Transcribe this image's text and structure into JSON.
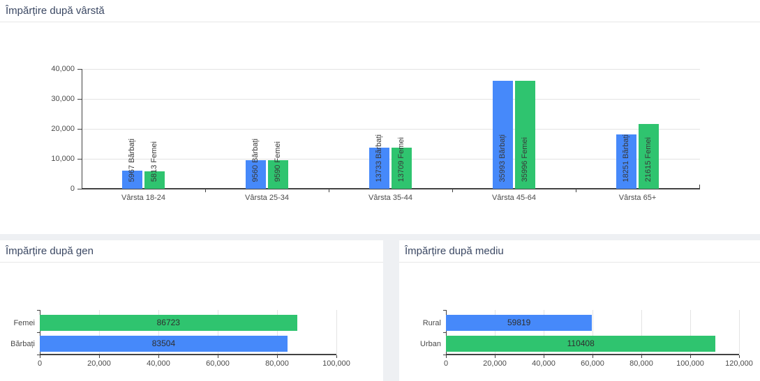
{
  "panels": {
    "age": {
      "title": "Împărțire după vârstă"
    },
    "gender": {
      "title": "Împărțire după gen"
    },
    "environment": {
      "title": "Împărțire după mediu"
    }
  },
  "theme": {
    "page_bg": "#eef0f3",
    "card_bg": "#ffffff",
    "title_text": "#3b4863",
    "divider": "#e7e7e7",
    "grid": "#e3e3e3",
    "axis": "#424242",
    "tick_text": "#4a4a4a",
    "annotation_text": "#383838",
    "value_text": "#2e2e2e",
    "male_blue": "#4689fa",
    "female_green": "#2fc46f"
  },
  "chart_data": [
    {
      "type": "bar",
      "orientation": "vertical",
      "title": "Împărțire după vârstă",
      "categories": [
        "Vârsta 18-24",
        "Vârsta 25-34",
        "Vârsta 35-44",
        "Vârsta 45-64",
        "Vârsta 65+"
      ],
      "series": [
        {
          "name": "Bărbați",
          "color": "#4689fa",
          "values": [
            5967,
            9560,
            13733,
            35993,
            18251
          ]
        },
        {
          "name": "Femei",
          "color": "#2fc46f",
          "values": [
            5813,
            9590,
            13709,
            35996,
            21615
          ]
        }
      ],
      "ylim": [
        0,
        40000
      ],
      "yticks": [
        0,
        10000,
        20000,
        30000,
        40000
      ],
      "grid": true,
      "legend": "none",
      "annotations": [
        "5967 Bărbați",
        "5813 Femei",
        "9560 Bărbați",
        "9590 Femei",
        "13733 Bărbați",
        "13709 Femei",
        "35993 Bărbați",
        "35996 Femei",
        "18251 Bărbați",
        "21615 Femei"
      ]
    },
    {
      "type": "bar",
      "orientation": "horizontal",
      "title": "Împărțire după gen",
      "categories": [
        "Femei",
        "Bărbați"
      ],
      "values": [
        86723,
        83504
      ],
      "value_labels": [
        "86723",
        "83504"
      ],
      "colors": [
        "#2fc46f",
        "#4689fa"
      ],
      "xlim": [
        0,
        100000
      ],
      "xticks": [
        0,
        20000,
        40000,
        60000,
        80000,
        100000
      ],
      "grid": true,
      "legend": "none"
    },
    {
      "type": "bar",
      "orientation": "horizontal",
      "title": "Împărțire după mediu",
      "categories": [
        "Rural",
        "Urban"
      ],
      "values": [
        59819,
        110408
      ],
      "value_labels": [
        "59819",
        "110408"
      ],
      "colors": [
        "#4689fa",
        "#2fc46f"
      ],
      "xlim": [
        0,
        120000
      ],
      "xticks": [
        0,
        20000,
        40000,
        60000,
        80000,
        100000,
        120000
      ],
      "grid": true,
      "legend": "none"
    }
  ]
}
